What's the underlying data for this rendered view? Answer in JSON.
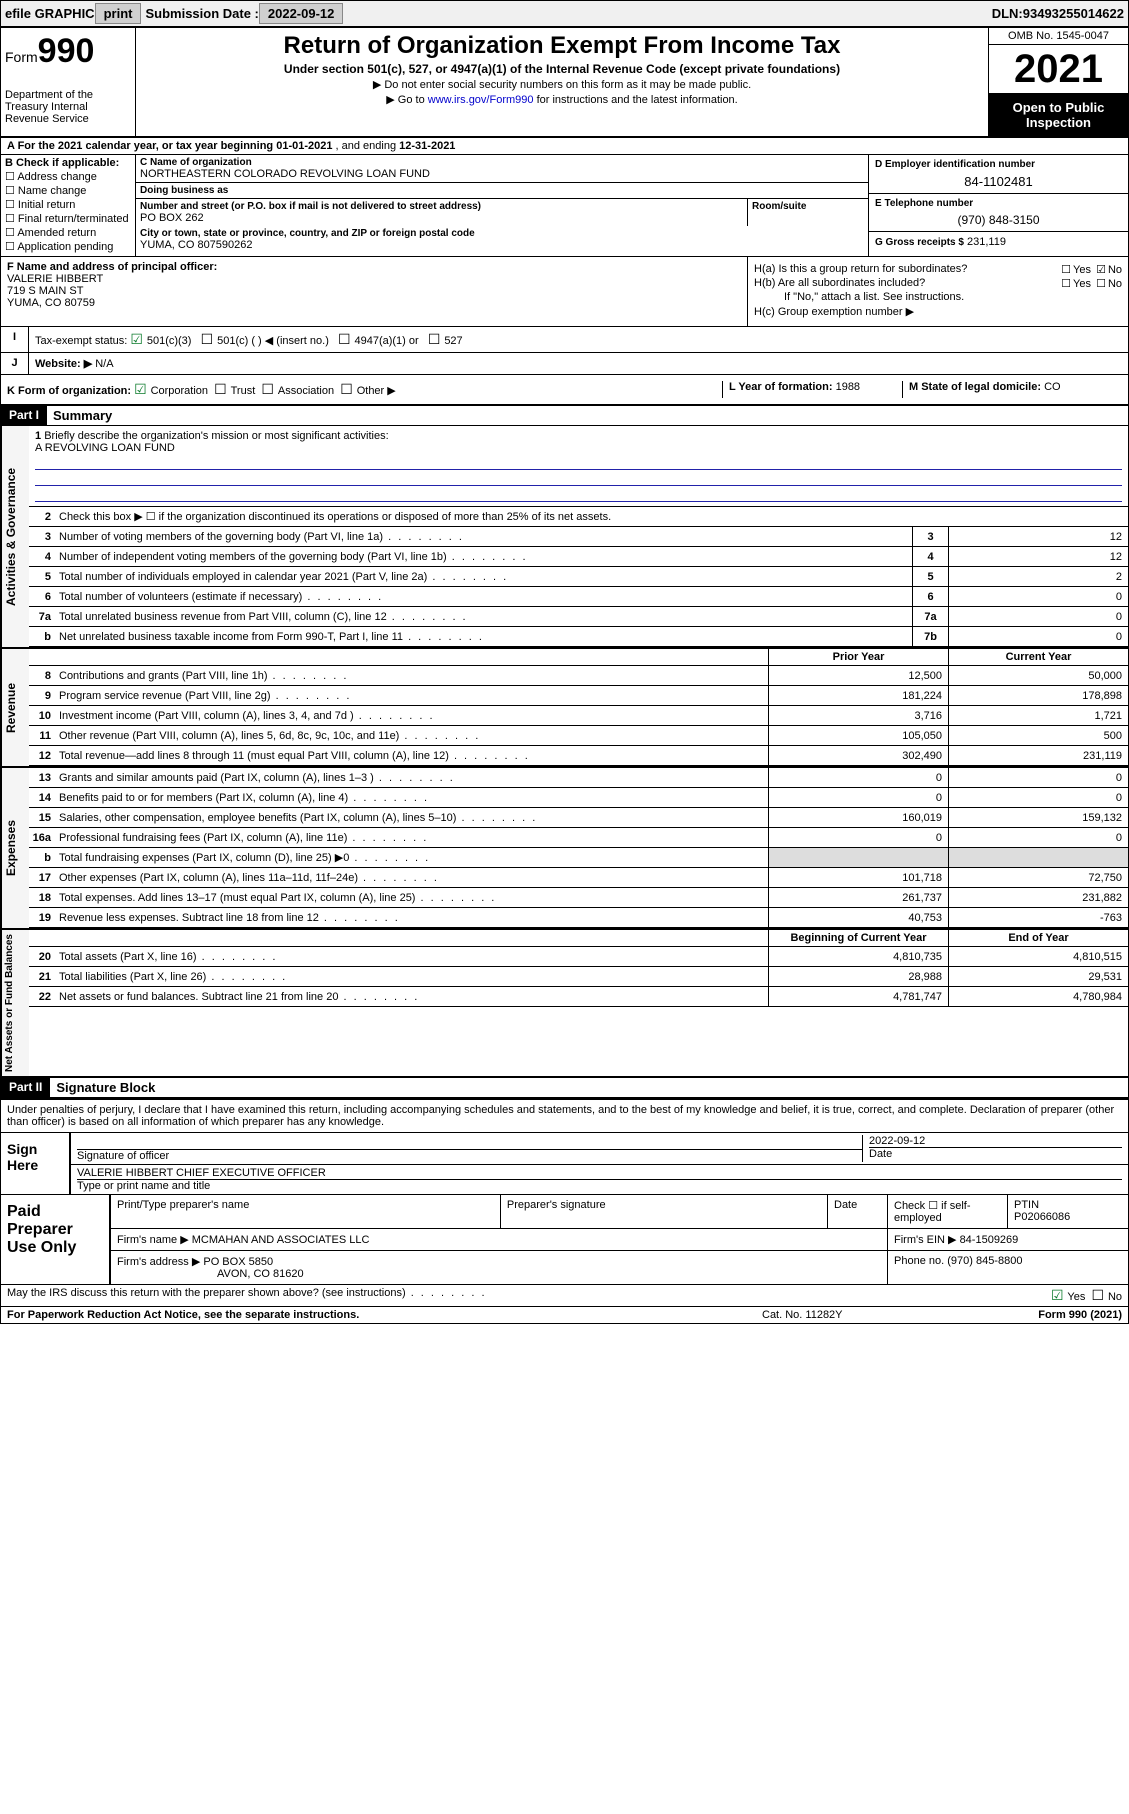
{
  "top": {
    "efile": "efile GRAPHIC",
    "print": "print",
    "subLabel": "Submission Date :",
    "subDate": "2022-09-12",
    "dlnLabel": "DLN:",
    "dln": "93493255014622"
  },
  "header": {
    "formWord": "Form",
    "formNum": "990",
    "dept": "Department of the Treasury Internal Revenue Service",
    "title": "Return of Organization Exempt From Income Tax",
    "sub": "Under section 501(c), 527, or 4947(a)(1) of the Internal Revenue Code (except private foundations)",
    "note1": "▶ Do not enter social security numbers on this form as it may be made public.",
    "note2": "▶ Go to ",
    "link": "www.irs.gov/Form990",
    "note3": " for instructions and the latest information.",
    "omb": "OMB No. 1545-0047",
    "year": "2021",
    "open": "Open to Public Inspection"
  },
  "period": {
    "a": "A For the 2021 calendar year, or tax year beginning ",
    "d1": "01-01-2021",
    "mid": " , and ending ",
    "d2": "12-31-2021"
  },
  "boxB": {
    "label": "B Check if applicable:",
    "items": [
      "Address change",
      "Name change",
      "Initial return",
      "Final return/terminated",
      "Amended return",
      "Application pending"
    ]
  },
  "boxC": {
    "nameLbl": "C Name of organization",
    "name": "NORTHEASTERN COLORADO REVOLVING LOAN FUND",
    "dba": "Doing business as",
    "addrLbl": "Number and street (or P.O. box if mail is not delivered to street address)",
    "addr": "PO BOX 262",
    "suite": "Room/suite",
    "cityLbl": "City or town, state or province, country, and ZIP or foreign postal code",
    "city": "YUMA, CO  807590262"
  },
  "boxD": {
    "lbl": "D Employer identification number",
    "val": "84-1102481"
  },
  "boxE": {
    "lbl": "E Telephone number",
    "val": "(970) 848-3150"
  },
  "boxG": {
    "lbl": "G Gross receipts $",
    "val": "231,119"
  },
  "boxF": {
    "lbl": "F Name and address of principal officer:",
    "name": "VALERIE HIBBERT",
    "addr1": "719 S MAIN ST",
    "addr2": "YUMA, CO  80759"
  },
  "boxH": {
    "a": "H(a) Is this a group return for subordinates?",
    "b": "H(b) Are all subordinates included?",
    "bnote": "If \"No,\" attach a list. See instructions.",
    "c": "H(c) Group exemption number ▶",
    "yes": "Yes",
    "no": "No"
  },
  "boxI": {
    "lbl": "Tax-exempt status:",
    "opts": [
      "501(c)(3)",
      "501(c) (  ) ◀ (insert no.)",
      "4947(a)(1) or",
      "527"
    ]
  },
  "boxJ": {
    "lbl": "Website: ▶",
    "val": "N/A"
  },
  "boxK": {
    "lbl": "K Form of organization:",
    "opts": [
      "Corporation",
      "Trust",
      "Association",
      "Other ▶"
    ],
    "L": "L Year of formation:",
    "Lval": "1988",
    "M": "M State of legal domicile:",
    "Mval": "CO"
  },
  "part1": {
    "hdr": "Part I",
    "title": "Summary"
  },
  "gov": {
    "tab": "Activities & Governance",
    "l1": "Briefly describe the organization's mission or most significant activities:",
    "mission": "A REVOLVING LOAN FUND",
    "l2": "Check this box ▶ ☐  if the organization discontinued its operations or disposed of more than 25% of its net assets.",
    "rows": [
      {
        "n": "3",
        "t": "Number of voting members of the governing body (Part VI, line 1a)",
        "b": "3",
        "v": "12"
      },
      {
        "n": "4",
        "t": "Number of independent voting members of the governing body (Part VI, line 1b)",
        "b": "4",
        "v": "12"
      },
      {
        "n": "5",
        "t": "Total number of individuals employed in calendar year 2021 (Part V, line 2a)",
        "b": "5",
        "v": "2"
      },
      {
        "n": "6",
        "t": "Total number of volunteers (estimate if necessary)",
        "b": "6",
        "v": "0"
      },
      {
        "n": "7a",
        "t": "Total unrelated business revenue from Part VIII, column (C), line 12",
        "b": "7a",
        "v": "0"
      },
      {
        "n": "b",
        "t": "Net unrelated business taxable income from Form 990-T, Part I, line 11",
        "b": "7b",
        "v": "0"
      }
    ]
  },
  "rev": {
    "tab": "Revenue",
    "hdrPrior": "Prior Year",
    "hdrCurr": "Current Year",
    "rows": [
      {
        "n": "8",
        "t": "Contributions and grants (Part VIII, line 1h)",
        "p": "12,500",
        "c": "50,000"
      },
      {
        "n": "9",
        "t": "Program service revenue (Part VIII, line 2g)",
        "p": "181,224",
        "c": "178,898"
      },
      {
        "n": "10",
        "t": "Investment income (Part VIII, column (A), lines 3, 4, and 7d )",
        "p": "3,716",
        "c": "1,721"
      },
      {
        "n": "11",
        "t": "Other revenue (Part VIII, column (A), lines 5, 6d, 8c, 9c, 10c, and 11e)",
        "p": "105,050",
        "c": "500"
      },
      {
        "n": "12",
        "t": "Total revenue—add lines 8 through 11 (must equal Part VIII, column (A), line 12)",
        "p": "302,490",
        "c": "231,119"
      }
    ]
  },
  "exp": {
    "tab": "Expenses",
    "rows": [
      {
        "n": "13",
        "t": "Grants and similar amounts paid (Part IX, column (A), lines 1–3 )",
        "p": "0",
        "c": "0"
      },
      {
        "n": "14",
        "t": "Benefits paid to or for members (Part IX, column (A), line 4)",
        "p": "0",
        "c": "0"
      },
      {
        "n": "15",
        "t": "Salaries, other compensation, employee benefits (Part IX, column (A), lines 5–10)",
        "p": "160,019",
        "c": "159,132"
      },
      {
        "n": "16a",
        "t": "Professional fundraising fees (Part IX, column (A), line 11e)",
        "p": "0",
        "c": "0"
      },
      {
        "n": "b",
        "t": "Total fundraising expenses (Part IX, column (D), line 25) ▶0",
        "p": "",
        "c": ""
      },
      {
        "n": "17",
        "t": "Other expenses (Part IX, column (A), lines 11a–11d, 11f–24e)",
        "p": "101,718",
        "c": "72,750"
      },
      {
        "n": "18",
        "t": "Total expenses. Add lines 13–17 (must equal Part IX, column (A), line 25)",
        "p": "261,737",
        "c": "231,882"
      },
      {
        "n": "19",
        "t": "Revenue less expenses. Subtract line 18 from line 12",
        "p": "40,753",
        "c": "-763"
      }
    ]
  },
  "net": {
    "tab": "Net Assets or Fund Balances",
    "hdrBeg": "Beginning of Current Year",
    "hdrEnd": "End of Year",
    "rows": [
      {
        "n": "20",
        "t": "Total assets (Part X, line 16)",
        "p": "4,810,735",
        "c": "4,810,515"
      },
      {
        "n": "21",
        "t": "Total liabilities (Part X, line 26)",
        "p": "28,988",
        "c": "29,531"
      },
      {
        "n": "22",
        "t": "Net assets or fund balances. Subtract line 21 from line 20",
        "p": "4,781,747",
        "c": "4,780,984"
      }
    ]
  },
  "part2": {
    "hdr": "Part II",
    "title": "Signature Block"
  },
  "sig": {
    "pre": "Under penalties of perjury, I declare that I have examined this return, including accompanying schedules and statements, and to the best of my knowledge and belief, it is true, correct, and complete. Declaration of preparer (other than officer) is based on all information of which preparer has any knowledge.",
    "here": "Sign Here",
    "sigOf": "Signature of officer",
    "date": "2022-09-12",
    "dateLbl": "Date",
    "name": "VALERIE HIBBERT  CHIEF EXECUTIVE OFFICER",
    "nameLbl": "Type or print name and title"
  },
  "paid": {
    "lbl": "Paid Preparer Use Only",
    "h": [
      "Print/Type preparer's name",
      "Preparer's signature",
      "Date",
      "Check ☐ if self-employed",
      "PTIN"
    ],
    "ptin": "P02066086",
    "firmLbl": "Firm's name   ▶",
    "firm": "MCMAHAN AND ASSOCIATES LLC",
    "einLbl": "Firm's EIN ▶",
    "ein": "84-1509269",
    "addrLbl": "Firm's address ▶",
    "addr1": "PO BOX 5850",
    "addr2": "AVON, CO  81620",
    "phLbl": "Phone no.",
    "ph": "(970) 845-8800"
  },
  "discuss": {
    "q": "May the IRS discuss this return with the preparer shown above? (see instructions)",
    "yes": "Yes",
    "no": "No"
  },
  "footer": {
    "l": "For Paperwork Reduction Act Notice, see the separate instructions.",
    "m": "Cat. No. 11282Y",
    "r": "Form 990 (2021)"
  },
  "colors": {
    "link": "#0000cc",
    "checkGreen": "#0a7a2a",
    "bgBar": "#f0f0f0"
  }
}
